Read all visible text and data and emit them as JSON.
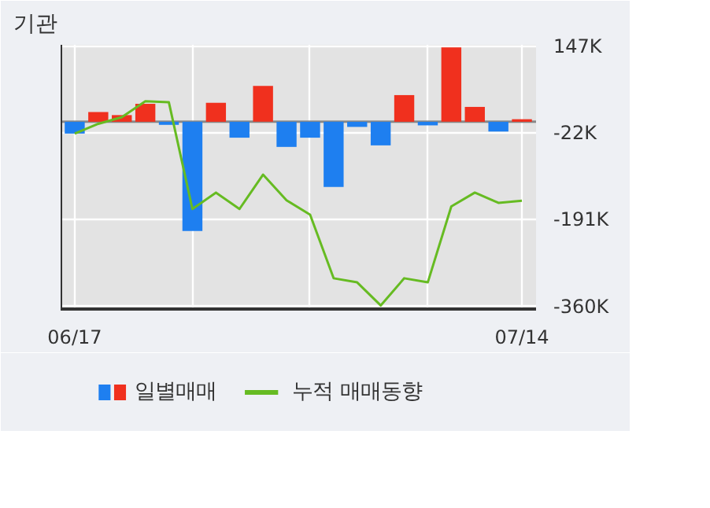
{
  "chart_data": {
    "type": "bar",
    "title": "기관",
    "categories": [
      "06/17",
      null,
      null,
      null,
      null,
      null,
      null,
      null,
      null,
      null,
      null,
      null,
      null,
      null,
      null,
      null,
      null,
      null,
      null,
      "07/14"
    ],
    "series": [
      {
        "name": "일별매매",
        "type": "bar",
        "colors": [
          "#1e7ff0",
          "#f0301e",
          "#f0301e",
          "#f0301e",
          "#1e7ff0",
          "#1e7ff0",
          "#f0301e",
          "#1e7ff0",
          "#f0301e",
          "#1e7ff0",
          "#1e7ff0",
          "#1e7ff0",
          "#1e7ff0",
          "#1e7ff0",
          "#f0301e",
          "#1e7ff0",
          "#f0301e",
          "#f0301e",
          "#1e7ff0",
          "#f0301e"
        ],
        "values": [
          -23,
          19,
          13,
          35,
          -6,
          -213,
          37,
          -31,
          70,
          -49,
          -31,
          -127,
          -10,
          -46,
          52,
          -7,
          145,
          29,
          -19,
          5
        ]
      },
      {
        "name": "누적 매매동향",
        "type": "line",
        "color": "#66bb22",
        "values": [
          -23,
          -4,
          9,
          40,
          38,
          -170,
          -138,
          -170,
          -103,
          -153,
          -181,
          -305,
          -313,
          -358,
          -305,
          -313,
          -165,
          -138,
          -158,
          -154
        ]
      }
    ],
    "ylim": [
      -365,
      150
    ],
    "yticks": [
      {
        "value": 147,
        "label": "147K"
      },
      {
        "value": -22,
        "label": "-22K"
      },
      {
        "value": -191,
        "label": "-191K"
      },
      {
        "value": -360,
        "label": "-360K"
      }
    ],
    "grid": true,
    "legend": "bottom"
  }
}
